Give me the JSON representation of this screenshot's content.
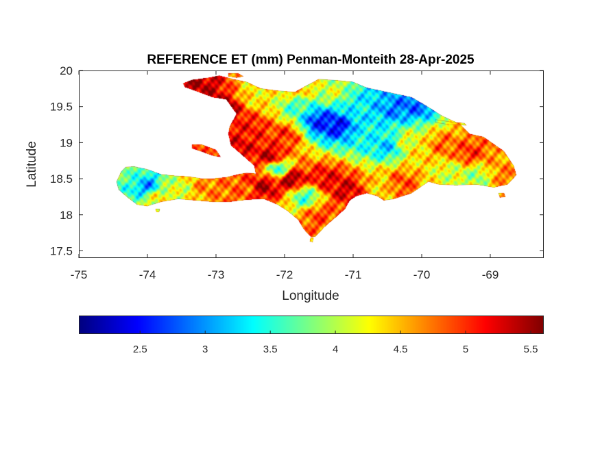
{
  "chart_data": {
    "type": "heatmap",
    "title": "REFERENCE ET (mm) Penman-Monteith 28-Apr-2025",
    "xlabel": "Longitude",
    "ylabel": "Latitude",
    "xlim": [
      -75,
      -68.22
    ],
    "ylim": [
      17.4,
      20
    ],
    "xticks": [
      -75,
      -74,
      -73,
      -72,
      -71,
      -70,
      -69
    ],
    "xtick_labels": [
      "-75",
      "-74",
      "-73",
      "-72",
      "-71",
      "-70",
      "-69"
    ],
    "yticks": [
      17.5,
      18,
      18.5,
      19,
      19.5,
      20
    ],
    "ytick_labels": [
      "17.5",
      "18",
      "18.5",
      "19",
      "19.5",
      "20"
    ],
    "colormap": "jet",
    "clim": [
      2.03,
      5.6
    ],
    "colorbar": {
      "location": "bottom",
      "ticks": [
        2.5,
        3,
        3.5,
        4,
        4.5,
        5,
        5.5
      ],
      "tick_labels": [
        "2.5",
        "3",
        "3.5",
        "4",
        "4.5",
        "5",
        "5.5"
      ]
    },
    "land_outline": [
      [
        -74.45,
        18.46
      ],
      [
        -74.38,
        18.6
      ],
      [
        -74.32,
        18.66
      ],
      [
        -74.2,
        18.67
      ],
      [
        -74.0,
        18.63
      ],
      [
        -73.8,
        18.56
      ],
      [
        -73.6,
        18.54
      ],
      [
        -73.4,
        18.53
      ],
      [
        -73.2,
        18.5
      ],
      [
        -73.05,
        18.5
      ],
      [
        -72.85,
        18.52
      ],
      [
        -72.68,
        18.56
      ],
      [
        -72.55,
        18.58
      ],
      [
        -72.42,
        18.57
      ],
      [
        -72.44,
        18.68
      ],
      [
        -72.62,
        18.83
      ],
      [
        -72.78,
        18.96
      ],
      [
        -72.82,
        19.12
      ],
      [
        -72.8,
        19.22
      ],
      [
        -72.7,
        19.4
      ],
      [
        -72.85,
        19.6
      ],
      [
        -73.05,
        19.63
      ],
      [
        -73.25,
        19.7
      ],
      [
        -73.45,
        19.77
      ],
      [
        -73.48,
        19.82
      ],
      [
        -73.35,
        19.87
      ],
      [
        -73.1,
        19.9
      ],
      [
        -72.95,
        19.93
      ],
      [
        -72.75,
        19.88
      ],
      [
        -72.55,
        19.84
      ],
      [
        -72.35,
        19.75
      ],
      [
        -72.1,
        19.72
      ],
      [
        -71.85,
        19.7
      ],
      [
        -71.7,
        19.78
      ],
      [
        -71.5,
        19.88
      ],
      [
        -71.2,
        19.86
      ],
      [
        -71.0,
        19.84
      ],
      [
        -70.8,
        19.76
      ],
      [
        -70.6,
        19.72
      ],
      [
        -70.4,
        19.68
      ],
      [
        -70.15,
        19.63
      ],
      [
        -69.95,
        19.52
      ],
      [
        -69.7,
        19.37
      ],
      [
        -69.45,
        19.26
      ],
      [
        -69.3,
        19.12
      ],
      [
        -69.1,
        19.08
      ],
      [
        -68.95,
        18.98
      ],
      [
        -68.8,
        18.88
      ],
      [
        -68.66,
        18.68
      ],
      [
        -68.62,
        18.55
      ],
      [
        -68.75,
        18.42
      ],
      [
        -68.95,
        18.38
      ],
      [
        -69.2,
        18.42
      ],
      [
        -69.5,
        18.41
      ],
      [
        -69.75,
        18.42
      ],
      [
        -69.9,
        18.46
      ],
      [
        -70.15,
        18.3
      ],
      [
        -70.4,
        18.22
      ],
      [
        -70.55,
        18.2
      ],
      [
        -70.65,
        18.26
      ],
      [
        -70.8,
        18.3
      ],
      [
        -70.95,
        18.26
      ],
      [
        -71.05,
        18.2
      ],
      [
        -71.12,
        18.08
      ],
      [
        -71.25,
        17.97
      ],
      [
        -71.42,
        17.83
      ],
      [
        -71.55,
        17.7
      ],
      [
        -71.62,
        17.7
      ],
      [
        -71.72,
        17.8
      ],
      [
        -71.8,
        17.93
      ],
      [
        -71.95,
        18.05
      ],
      [
        -72.1,
        18.14
      ],
      [
        -72.3,
        18.22
      ],
      [
        -72.55,
        18.21
      ],
      [
        -72.8,
        18.18
      ],
      [
        -73.05,
        18.18
      ],
      [
        -73.3,
        18.2
      ],
      [
        -73.55,
        18.22
      ],
      [
        -73.8,
        18.18
      ],
      [
        -74.0,
        18.12
      ],
      [
        -74.15,
        18.14
      ],
      [
        -74.3,
        18.25
      ],
      [
        -74.42,
        18.35
      ]
    ],
    "islands": [
      {
        "name": "",
        "outline": [
          [
            -73.35,
            18.97
          ],
          [
            -73.2,
            18.97
          ],
          [
            -73.0,
            18.9
          ],
          [
            -72.93,
            18.8
          ],
          [
            -73.05,
            18.82
          ],
          [
            -73.25,
            18.89
          ],
          [
            -73.35,
            18.92
          ]
        ]
      },
      {
        "name": "",
        "outline": [
          [
            -72.82,
            19.96
          ],
          [
            -72.68,
            19.96
          ],
          [
            -72.6,
            19.92
          ],
          [
            -72.7,
            19.9
          ],
          [
            -72.82,
            19.92
          ]
        ]
      },
      {
        "name": "",
        "outline": [
          [
            -69.8,
            19.32
          ],
          [
            -69.6,
            19.29
          ],
          [
            -69.38,
            19.27
          ],
          [
            -69.35,
            19.24
          ],
          [
            -69.6,
            19.25
          ],
          [
            -69.8,
            19.28
          ]
        ]
      },
      {
        "name": "",
        "outline": [
          [
            -68.88,
            18.3
          ],
          [
            -68.8,
            18.3
          ],
          [
            -68.78,
            18.25
          ],
          [
            -68.86,
            18.24
          ]
        ]
      },
      {
        "name": "",
        "outline": [
          [
            -71.62,
            17.68
          ],
          [
            -71.58,
            17.68
          ],
          [
            -71.59,
            17.62
          ],
          [
            -71.63,
            17.63
          ]
        ]
      },
      {
        "name": "",
        "outline": [
          [
            -73.88,
            18.08
          ],
          [
            -73.82,
            18.08
          ],
          [
            -73.83,
            18.04
          ],
          [
            -73.87,
            18.04
          ]
        ]
      }
    ],
    "et_anchors": [
      [
        -72.9,
        19.45,
        5.5
      ],
      [
        -73.3,
        19.8,
        5.4
      ],
      [
        -72.5,
        19.2,
        5.1
      ],
      [
        -72.7,
        18.9,
        5.3
      ],
      [
        -72.2,
        18.8,
        5.4
      ],
      [
        -72.0,
        19.1,
        5.0
      ],
      [
        -71.9,
        18.5,
        5.5
      ],
      [
        -71.4,
        18.5,
        5.2
      ],
      [
        -71.1,
        18.35,
        5.3
      ],
      [
        -71.5,
        18.0,
        4.9
      ],
      [
        -71.7,
        18.25,
        3.6
      ],
      [
        -72.3,
        18.4,
        5.4
      ],
      [
        -72.6,
        18.35,
        4.8
      ],
      [
        -72.1,
        18.65,
        3.5
      ],
      [
        -73.1,
        18.4,
        4.7
      ],
      [
        -73.6,
        18.38,
        4.1
      ],
      [
        -74.0,
        18.4,
        3.0
      ],
      [
        -74.3,
        18.55,
        3.7
      ],
      [
        -73.85,
        18.25,
        4.3
      ],
      [
        -71.5,
        19.3,
        2.6
      ],
      [
        -71.25,
        19.25,
        2.5
      ],
      [
        -71.8,
        19.5,
        3.6
      ],
      [
        -71.0,
        19.5,
        3.4
      ],
      [
        -70.4,
        19.5,
        2.9
      ],
      [
        -70.6,
        19.65,
        3.2
      ],
      [
        -70.1,
        19.55,
        2.8
      ],
      [
        -70.8,
        19.1,
        3.4
      ],
      [
        -70.5,
        18.95,
        3.2
      ],
      [
        -70.2,
        19.0,
        4.2
      ],
      [
        -70.0,
        18.8,
        4.4
      ],
      [
        -69.7,
        18.95,
        4.8
      ],
      [
        -69.3,
        18.85,
        5.0
      ],
      [
        -68.9,
        18.65,
        4.6
      ],
      [
        -69.2,
        18.55,
        3.9
      ],
      [
        -69.6,
        18.6,
        4.1
      ],
      [
        -70.3,
        18.45,
        4.9
      ],
      [
        -70.6,
        18.4,
        4.4
      ],
      [
        -71.8,
        19.75,
        4.5
      ],
      [
        -71.3,
        19.7,
        4.1
      ],
      [
        -72.4,
        19.65,
        4.3
      ],
      [
        -73.4,
        18.93,
        5.0
      ],
      [
        -68.7,
        18.52,
        4.8
      ]
    ]
  }
}
